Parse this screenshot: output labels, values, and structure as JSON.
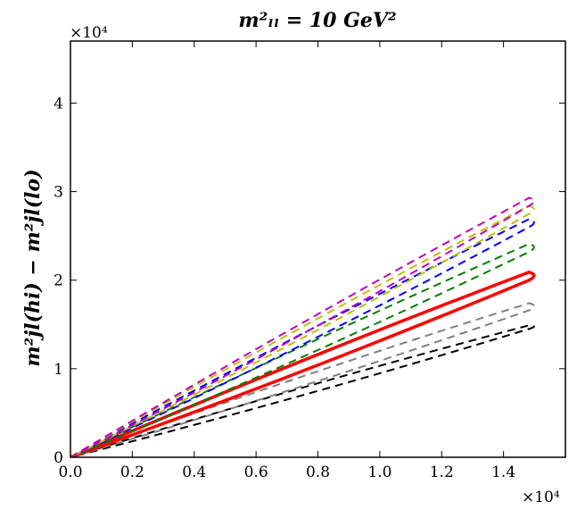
{
  "chart_data": {
    "type": "line",
    "title": "m²ₗₗ = 10 GeV²",
    "xlabel": "",
    "ylabel": "m²jl(hi) − m²jl(lo)",
    "x_multiplier": "×10⁴",
    "y_multiplier": "×10⁴",
    "xlim": [
      0,
      1.6
    ],
    "ylim": [
      0,
      4.7
    ],
    "x_ticks": [
      0.0,
      0.2,
      0.4,
      0.6,
      0.8,
      1.0,
      1.2,
      1.4
    ],
    "x_tick_labels": [
      "0.0",
      "0.2",
      "0.4",
      "0.6",
      "0.8",
      "1.0",
      "1.2",
      "1.4"
    ],
    "y_ticks": [
      0,
      1,
      2,
      3,
      4
    ],
    "y_tick_labels": [
      "0",
      "1",
      "2",
      "3",
      "4"
    ],
    "series": [
      {
        "name": "black",
        "color": "#000000",
        "style": "dashed",
        "upper": [
          [
            0,
            0
          ],
          [
            1.5,
            1.5
          ]
        ],
        "lower": [
          [
            0,
            0
          ],
          [
            1.5,
            1.47
          ]
        ]
      },
      {
        "name": "grey",
        "color": "#808080",
        "style": "dashed",
        "upper": [
          [
            0,
            0
          ],
          [
            1.5,
            1.75
          ]
        ],
        "lower": [
          [
            0,
            0
          ],
          [
            1.5,
            1.68
          ]
        ]
      },
      {
        "name": "red",
        "color": "#ff0000",
        "style": "solid",
        "upper": [
          [
            0,
            0
          ],
          [
            1.5,
            2.1
          ]
        ],
        "lower": [
          [
            0,
            0
          ],
          [
            1.5,
            2.02
          ]
        ]
      },
      {
        "name": "green",
        "color": "#008000",
        "style": "dashed",
        "upper": [
          [
            0,
            0
          ],
          [
            1.5,
            2.42
          ]
        ],
        "lower": [
          [
            0,
            0
          ],
          [
            1.5,
            2.34
          ]
        ]
      },
      {
        "name": "blue",
        "color": "#0000ff",
        "style": "dashed",
        "upper": [
          [
            0,
            0
          ],
          [
            1.5,
            2.7
          ]
        ],
        "lower": [
          [
            0,
            0
          ],
          [
            1.5,
            2.62
          ]
        ]
      },
      {
        "name": "yellow",
        "color": "#bfbf00",
        "style": "dashed",
        "upper": [
          [
            0,
            0
          ],
          [
            1.5,
            2.85
          ]
        ],
        "lower": [
          [
            0,
            0
          ],
          [
            1.5,
            2.77
          ]
        ]
      },
      {
        "name": "magenta",
        "color": "#bf00bf",
        "style": "dashed",
        "upper": [
          [
            0,
            0
          ],
          [
            1.5,
            2.94
          ]
        ],
        "lower": [
          [
            0,
            0
          ],
          [
            1.5,
            2.86
          ]
        ]
      }
    ]
  }
}
